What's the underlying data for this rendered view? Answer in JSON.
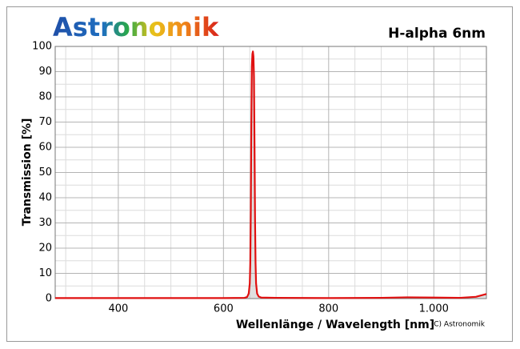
{
  "chart_data": {
    "type": "line",
    "logo": "Astronomik",
    "title": "H-alpha 6nm",
    "xlabel": "Wellenlänge / Wavelength [nm]",
    "ylabel": "Transmission [%]",
    "copyright": "(C) Astronomik",
    "x": [
      280,
      400,
      600,
      640,
      645,
      648,
      650,
      651,
      652,
      653,
      654,
      655,
      656,
      657,
      658,
      659,
      660,
      661,
      662,
      664,
      667,
      672,
      700,
      800,
      900,
      950,
      1000,
      1050,
      1080,
      1100
    ],
    "series": [
      {
        "name": "H-alpha 6nm",
        "color": "#e01010",
        "values": [
          0.2,
          0.2,
          0.2,
          0.3,
          0.6,
          2,
          6,
          14,
          35,
          70,
          92,
          97,
          98,
          96,
          88,
          62,
          32,
          14,
          6,
          2,
          0.8,
          0.4,
          0.3,
          0.2,
          0.3,
          0.5,
          0.4,
          0.3,
          0.7,
          1.8
        ]
      }
    ],
    "xlim": [
      280,
      1100
    ],
    "ylim": [
      0,
      100
    ],
    "xticks": [
      400,
      600,
      800,
      {
        "value": 1000,
        "label": "1.000"
      }
    ],
    "yticks": [
      0,
      10,
      20,
      30,
      40,
      50,
      60,
      70,
      80,
      90,
      100
    ],
    "xminorticks": [
      300,
      350,
      450,
      500,
      550,
      650,
      700,
      750,
      850,
      900,
      950,
      1050
    ],
    "yminorticks": [
      5,
      15,
      25,
      35,
      45,
      55,
      65,
      75,
      85,
      95
    ],
    "grid": true
  }
}
